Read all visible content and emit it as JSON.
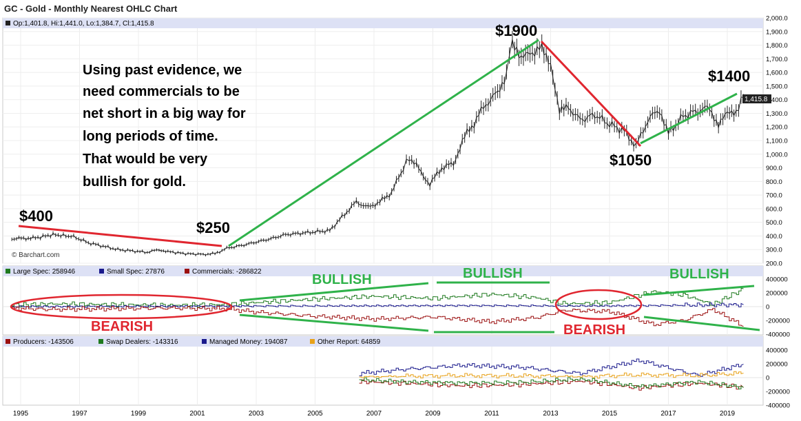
{
  "title": "GC - Gold - Monthly Nearest OHLC Chart",
  "price_legend": "Op:1,401.8, Hi:1,441.0, Lo:1,384.7, Cl:1,415.8",
  "last_price_label": "1,415.8",
  "watermark": "© Barchart.com",
  "commentary": [
    "Using past evidence, we",
    "need commercials to be",
    "net short in a big way for",
    "long periods of time.",
    "That would be very",
    "bullish for gold."
  ],
  "colors": {
    "trend_green": "#2fb24a",
    "trend_red": "#e0262f",
    "large_spec": "#1f7a1f",
    "small_spec": "#1a1a8c",
    "commercials": "#9b1010",
    "producers": "#9b1010",
    "swap_dealers": "#1f7a1f",
    "managed_money": "#1a1a8c",
    "other_report": "#e8a21a",
    "header_bg": "#dde1f5"
  },
  "chart_data": [
    {
      "type": "line",
      "title": "GC - Gold - Monthly Nearest OHLC Chart",
      "y_ticks": [
        "2,000.0",
        "1,900.0",
        "1,800.0",
        "1,700.0",
        "1,600.0",
        "1,500.0",
        "1,400.0",
        "1,300.0",
        "1,200.0",
        "1,100.0",
        "1,000.0",
        "900.0",
        "800.0",
        "700.0",
        "600.0",
        "500.0",
        "400.0",
        "300.0",
        "200.0"
      ],
      "ylim": [
        200,
        2000
      ],
      "x_ticks": [
        "1995",
        "1997",
        "1999",
        "2001",
        "2003",
        "2005",
        "2007",
        "2009",
        "2011",
        "2013",
        "2015",
        "2017",
        "2019"
      ],
      "series": [
        {
          "x": [
            1994.7,
            1995.5,
            1996.1,
            1996.8,
            1997.3,
            1997.8,
            1998.3,
            1998.8,
            1999.3,
            1999.7,
            2000.0,
            2000.6,
            2001.2,
            2001.6,
            2002.0,
            2002.5,
            2003.0,
            2003.5,
            2004.0,
            2004.5,
            2005.0,
            2005.5,
            2006.0,
            2006.4,
            2006.8,
            2007.2,
            2007.6,
            2008.0,
            2008.2,
            2008.6,
            2008.9,
            2009.3,
            2009.7,
            2010.0,
            2010.4,
            2010.8,
            2011.2,
            2011.5,
            2011.7,
            2012.0,
            2012.3,
            2012.7,
            2013.0,
            2013.3,
            2013.6,
            2014.0,
            2014.5,
            2015.0,
            2015.5,
            2015.9,
            2016.3,
            2016.7,
            2017.0,
            2017.5,
            2018.0,
            2018.4,
            2018.7,
            2019.0,
            2019.3,
            2019.55
          ],
          "values": [
            380,
            385,
            410,
            395,
            350,
            325,
            300,
            290,
            280,
            300,
            285,
            270,
            265,
            270,
            310,
            330,
            355,
            380,
            410,
            420,
            430,
            440,
            560,
            650,
            610,
            650,
            720,
            900,
            980,
            870,
            780,
            900,
            930,
            1100,
            1230,
            1370,
            1450,
            1600,
            1850,
            1680,
            1750,
            1770,
            1680,
            1300,
            1350,
            1250,
            1290,
            1220,
            1170,
            1060,
            1250,
            1330,
            1150,
            1280,
            1320,
            1340,
            1220,
            1290,
            1320,
            1415.8
          ]
        }
      ],
      "annotations": [
        "$1900",
        "$1400",
        "$1050",
        "$400",
        "$250"
      ]
    },
    {
      "type": "line",
      "legend": [
        "Large Spec: 258946",
        "Small Spec: 27876",
        "Commercials: -286822"
      ],
      "y_ticks": [
        "400000",
        "200000",
        "0",
        "-200000",
        "-400000"
      ],
      "ylim": [
        -400000,
        400000
      ],
      "series": [
        {
          "name": "Large Spec",
          "x": [
            1994.7,
            1996,
            1998,
            2000,
            2002,
            2003,
            2005,
            2007,
            2009,
            2011,
            2012.5,
            2013.5,
            2015,
            2016.5,
            2017.5,
            2018.5,
            2019.55
          ],
          "values": [
            20000,
            40000,
            30000,
            20000,
            30000,
            60000,
            110000,
            150000,
            120000,
            180000,
            130000,
            40000,
            60000,
            220000,
            170000,
            30000,
            258946
          ]
        },
        {
          "name": "Small Spec",
          "x": [
            1994.7,
            2000,
            2005,
            2010,
            2015,
            2019.55
          ],
          "values": [
            0,
            5000,
            10000,
            15000,
            10000,
            27876
          ]
        },
        {
          "name": "Commercials",
          "x": [
            1994.7,
            1996,
            1998,
            2000,
            2002,
            2003,
            2005,
            2007,
            2009,
            2011,
            2012.5,
            2013.5,
            2015,
            2016.5,
            2017.5,
            2018.5,
            2019.55
          ],
          "values": [
            -20000,
            -40000,
            -30000,
            -20000,
            -30000,
            -80000,
            -140000,
            -180000,
            -150000,
            -220000,
            -160000,
            -50000,
            -70000,
            -260000,
            -200000,
            -40000,
            -286822
          ]
        }
      ],
      "annotations": [
        "BULLISH",
        "BULLISH",
        "BULLISH",
        "BEARISH",
        "BEARISH"
      ]
    },
    {
      "type": "line",
      "legend": [
        "Producers: -143506",
        "Swap Dealers: -143316",
        "Managed Money: 194087",
        "Other Report: 64859"
      ],
      "y_ticks": [
        "400000",
        "200000",
        "0",
        "-200000",
        "-400000"
      ],
      "ylim": [
        -400000,
        400000
      ],
      "series": [
        {
          "name": "Producers",
          "x": [
            2006.5,
            2008,
            2010,
            2012,
            2014,
            2016,
            2018,
            2019.55
          ],
          "values": [
            -60000,
            -80000,
            -120000,
            -100000,
            -50000,
            -150000,
            -80000,
            -143506
          ]
        },
        {
          "name": "Swap Dealers",
          "x": [
            2006.5,
            2008,
            2010,
            2012,
            2014,
            2016,
            2018,
            2019.55
          ],
          "values": [
            -30000,
            -60000,
            -80000,
            -70000,
            -20000,
            -130000,
            -60000,
            -143316
          ]
        },
        {
          "name": "Managed Money",
          "x": [
            2006.5,
            2008,
            2010,
            2012,
            2014,
            2016,
            2018,
            2019.55
          ],
          "values": [
            60000,
            120000,
            180000,
            150000,
            60000,
            250000,
            30000,
            194087
          ]
        },
        {
          "name": "Other Report",
          "x": [
            2006.5,
            2008,
            2010,
            2012,
            2014,
            2016,
            2018,
            2019.55
          ],
          "values": [
            10000,
            20000,
            30000,
            25000,
            15000,
            40000,
            30000,
            64859
          ]
        }
      ]
    }
  ]
}
